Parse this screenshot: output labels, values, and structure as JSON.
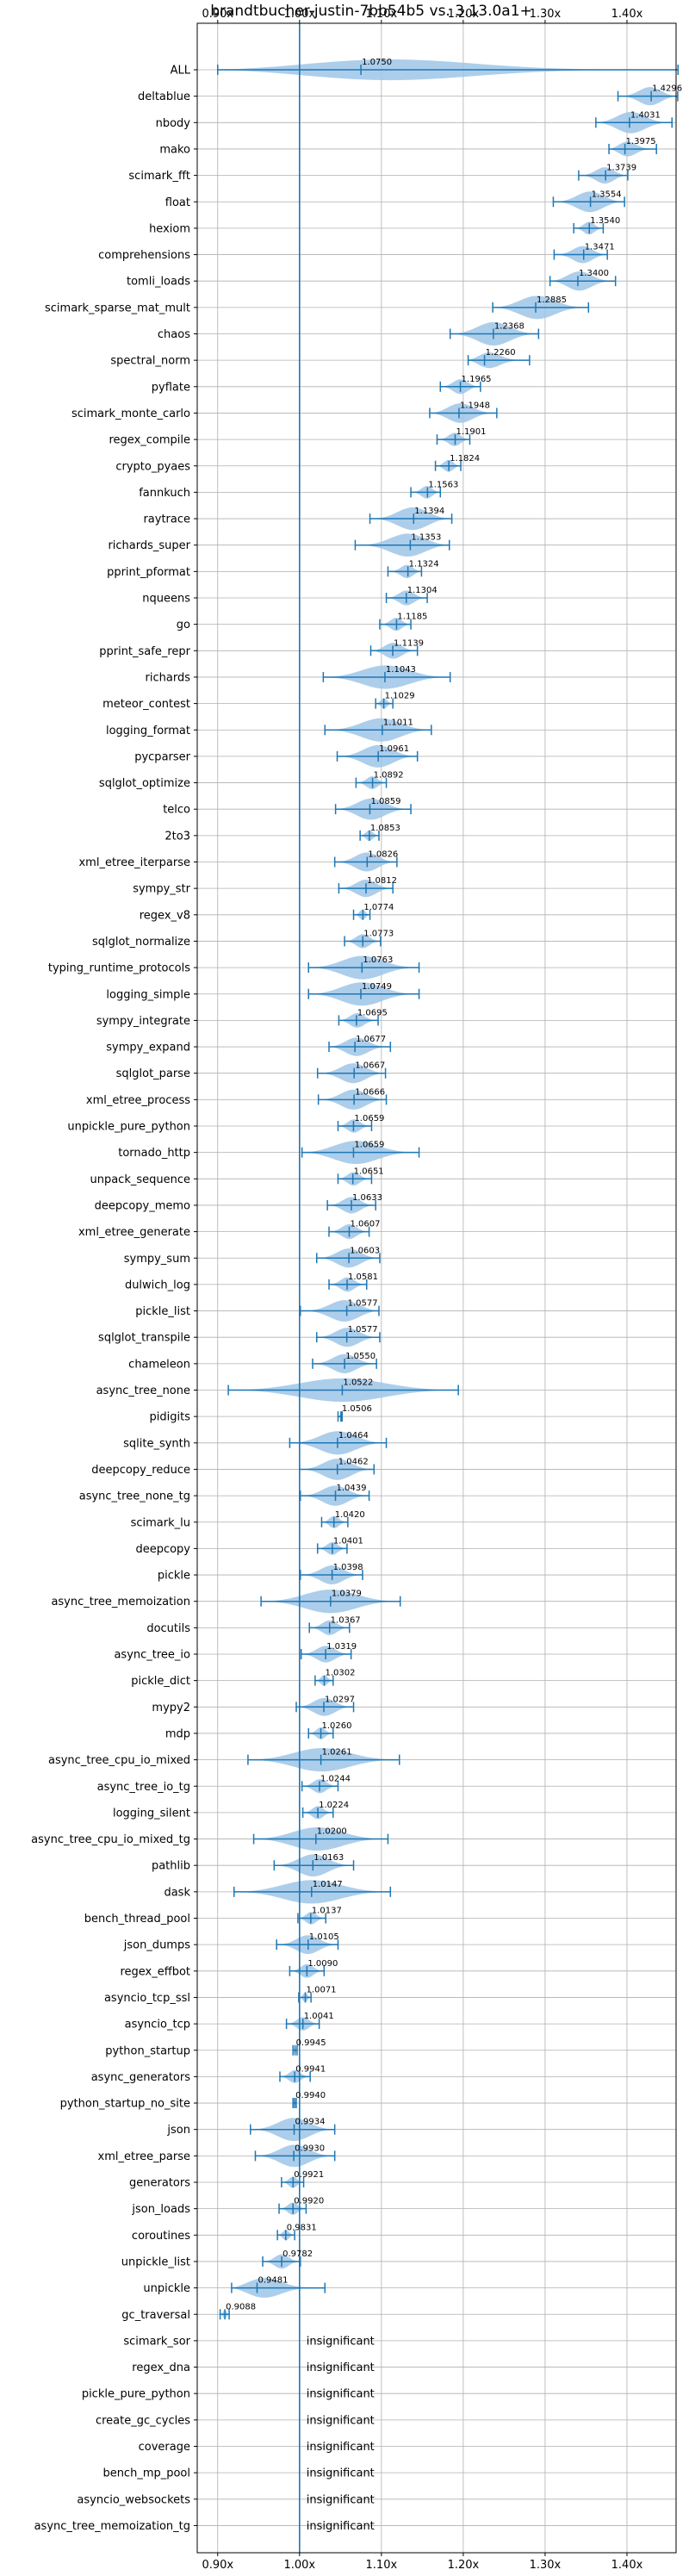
{
  "chart_data": {
    "type": "violin",
    "title": "brandtbucher-justin-7bb54b5 vs. 3.13.0a1+",
    "xlabel": "",
    "ylabel": "",
    "x_ticks": [
      "0.90x",
      "1.00x",
      "1.10x",
      "1.20x",
      "1.30x",
      "1.40x"
    ],
    "x_tick_values": [
      0.9,
      1.0,
      1.1,
      1.2,
      1.3,
      1.4
    ],
    "xlim": [
      0.875,
      1.46
    ],
    "reference_line": 1.0,
    "grid": true,
    "colors": {
      "violin": "#9ec5e8",
      "line": "#1f77b4",
      "grid": "#b0b0b0"
    },
    "insignificant_label": "insignificant",
    "benchmarks": [
      {
        "name": "ALL",
        "value": 1.075,
        "label": "1.0750",
        "min": 0.9,
        "max": 1.4624
      },
      {
        "name": "deltablue",
        "value": 1.4296,
        "label": "1.4296",
        "min": 1.389,
        "max": 1.462
      },
      {
        "name": "nbody",
        "value": 1.4031,
        "label": "1.4031",
        "min": 1.362,
        "max": 1.455
      },
      {
        "name": "mako",
        "value": 1.3975,
        "label": "1.3975",
        "min": 1.378,
        "max": 1.436
      },
      {
        "name": "scimark_fft",
        "value": 1.3739,
        "label": "1.3739",
        "min": 1.341,
        "max": 1.401
      },
      {
        "name": "float",
        "value": 1.3554,
        "label": "1.3554",
        "min": 1.31,
        "max": 1.397
      },
      {
        "name": "hexiom",
        "value": 1.354,
        "label": "1.3540",
        "min": 1.335,
        "max": 1.371
      },
      {
        "name": "comprehensions",
        "value": 1.3471,
        "label": "1.3471",
        "min": 1.311,
        "max": 1.376
      },
      {
        "name": "tomli_loads",
        "value": 1.34,
        "label": "1.3400",
        "min": 1.306,
        "max": 1.386
      },
      {
        "name": "scimark_sparse_mat_mult",
        "value": 1.2885,
        "label": "1.2885",
        "min": 1.236,
        "max": 1.353
      },
      {
        "name": "chaos",
        "value": 1.2368,
        "label": "1.2368",
        "min": 1.184,
        "max": 1.292
      },
      {
        "name": "spectral_norm",
        "value": 1.226,
        "label": "1.2260",
        "min": 1.206,
        "max": 1.281
      },
      {
        "name": "pyflate",
        "value": 1.1965,
        "label": "1.1965",
        "min": 1.172,
        "max": 1.221
      },
      {
        "name": "scimark_monte_carlo",
        "value": 1.1948,
        "label": "1.1948",
        "min": 1.159,
        "max": 1.241
      },
      {
        "name": "regex_compile",
        "value": 1.1901,
        "label": "1.1901",
        "min": 1.168,
        "max": 1.208
      },
      {
        "name": "crypto_pyaes",
        "value": 1.1824,
        "label": "1.1824",
        "min": 1.166,
        "max": 1.197
      },
      {
        "name": "fannkuch",
        "value": 1.1563,
        "label": "1.1563",
        "min": 1.136,
        "max": 1.172
      },
      {
        "name": "raytrace",
        "value": 1.1394,
        "label": "1.1394",
        "min": 1.086,
        "max": 1.186
      },
      {
        "name": "richards_super",
        "value": 1.1353,
        "label": "1.1353",
        "min": 1.068,
        "max": 1.183
      },
      {
        "name": "pprint_pformat",
        "value": 1.1324,
        "label": "1.1324",
        "min": 1.108,
        "max": 1.149
      },
      {
        "name": "nqueens",
        "value": 1.1304,
        "label": "1.1304",
        "min": 1.106,
        "max": 1.156
      },
      {
        "name": "go",
        "value": 1.1185,
        "label": "1.1185",
        "min": 1.098,
        "max": 1.136
      },
      {
        "name": "pprint_safe_repr",
        "value": 1.1139,
        "label": "1.1139",
        "min": 1.087,
        "max": 1.144
      },
      {
        "name": "richards",
        "value": 1.1043,
        "label": "1.1043",
        "min": 1.029,
        "max": 1.184
      },
      {
        "name": "meteor_contest",
        "value": 1.1029,
        "label": "1.1029",
        "min": 1.093,
        "max": 1.114
      },
      {
        "name": "logging_format",
        "value": 1.1011,
        "label": "1.1011",
        "min": 1.031,
        "max": 1.161
      },
      {
        "name": "pycparser",
        "value": 1.0961,
        "label": "1.0961",
        "min": 1.046,
        "max": 1.144
      },
      {
        "name": "sqlglot_optimize",
        "value": 1.0892,
        "label": "1.0892",
        "min": 1.069,
        "max": 1.106
      },
      {
        "name": "telco",
        "value": 1.0859,
        "label": "1.0859",
        "min": 1.044,
        "max": 1.136
      },
      {
        "name": "2to3",
        "value": 1.0853,
        "label": "1.0853",
        "min": 1.074,
        "max": 1.097
      },
      {
        "name": "xml_etree_iterparse",
        "value": 1.0826,
        "label": "1.0826",
        "min": 1.043,
        "max": 1.119
      },
      {
        "name": "sympy_str",
        "value": 1.0812,
        "label": "1.0812",
        "min": 1.048,
        "max": 1.114
      },
      {
        "name": "regex_v8",
        "value": 1.0774,
        "label": "1.0774",
        "min": 1.066,
        "max": 1.086
      },
      {
        "name": "sqlglot_normalize",
        "value": 1.0773,
        "label": "1.0773",
        "min": 1.055,
        "max": 1.099
      },
      {
        "name": "typing_runtime_protocols",
        "value": 1.0763,
        "label": "1.0763",
        "min": 1.011,
        "max": 1.146
      },
      {
        "name": "logging_simple",
        "value": 1.0749,
        "label": "1.0749",
        "min": 1.011,
        "max": 1.146
      },
      {
        "name": "sympy_integrate",
        "value": 1.0695,
        "label": "1.0695",
        "min": 1.048,
        "max": 1.096
      },
      {
        "name": "sympy_expand",
        "value": 1.0677,
        "label": "1.0677",
        "min": 1.036,
        "max": 1.111
      },
      {
        "name": "sqlglot_parse",
        "value": 1.0667,
        "label": "1.0667",
        "min": 1.022,
        "max": 1.105
      },
      {
        "name": "xml_etree_process",
        "value": 1.0666,
        "label": "1.0666",
        "min": 1.023,
        "max": 1.106
      },
      {
        "name": "unpickle_pure_python",
        "value": 1.0659,
        "label": "1.0659",
        "min": 1.047,
        "max": 1.088
      },
      {
        "name": "tornado_http",
        "value": 1.0659,
        "label": "1.0659",
        "min": 1.003,
        "max": 1.146
      },
      {
        "name": "unpack_sequence",
        "value": 1.0651,
        "label": "1.0651",
        "min": 1.047,
        "max": 1.088
      },
      {
        "name": "deepcopy_memo",
        "value": 1.0633,
        "label": "1.0633",
        "min": 1.034,
        "max": 1.093
      },
      {
        "name": "xml_etree_generate",
        "value": 1.0607,
        "label": "1.0607",
        "min": 1.036,
        "max": 1.085
      },
      {
        "name": "sympy_sum",
        "value": 1.0603,
        "label": "1.0603",
        "min": 1.021,
        "max": 1.098
      },
      {
        "name": "dulwich_log",
        "value": 1.0581,
        "label": "1.0581",
        "min": 1.036,
        "max": 1.082
      },
      {
        "name": "pickle_list",
        "value": 1.0577,
        "label": "1.0577",
        "min": 1.001,
        "max": 1.097
      },
      {
        "name": "sqlglot_transpile",
        "value": 1.0577,
        "label": "1.0577",
        "min": 1.021,
        "max": 1.098
      },
      {
        "name": "chameleon",
        "value": 1.055,
        "label": "1.0550",
        "min": 1.016,
        "max": 1.094
      },
      {
        "name": "async_tree_none",
        "value": 1.0522,
        "label": "1.0522",
        "min": 0.913,
        "max": 1.194
      },
      {
        "name": "pidigits",
        "value": 1.0506,
        "label": "1.0506",
        "min": 1.047,
        "max": 1.052
      },
      {
        "name": "sqlite_synth",
        "value": 1.0464,
        "label": "1.0464",
        "min": 0.988,
        "max": 1.106
      },
      {
        "name": "deepcopy_reduce",
        "value": 1.0462,
        "label": "1.0462",
        "min": 1.0,
        "max": 1.091
      },
      {
        "name": "async_tree_none_tg",
        "value": 1.0439,
        "label": "1.0439",
        "min": 1.001,
        "max": 1.085
      },
      {
        "name": "scimark_lu",
        "value": 1.042,
        "label": "1.0420",
        "min": 1.027,
        "max": 1.059
      },
      {
        "name": "deepcopy",
        "value": 1.0401,
        "label": "1.0401",
        "min": 1.022,
        "max": 1.058
      },
      {
        "name": "pickle",
        "value": 1.0398,
        "label": "1.0398",
        "min": 1.001,
        "max": 1.077
      },
      {
        "name": "async_tree_memoization",
        "value": 1.0379,
        "label": "1.0379",
        "min": 0.953,
        "max": 1.123
      },
      {
        "name": "docutils",
        "value": 1.0367,
        "label": "1.0367",
        "min": 1.012,
        "max": 1.061
      },
      {
        "name": "async_tree_io",
        "value": 1.0319,
        "label": "1.0319",
        "min": 1.002,
        "max": 1.063
      },
      {
        "name": "pickle_dict",
        "value": 1.0302,
        "label": "1.0302",
        "min": 1.019,
        "max": 1.041
      },
      {
        "name": "mypy2",
        "value": 1.0297,
        "label": "1.0297",
        "min": 0.996,
        "max": 1.066
      },
      {
        "name": "mdp",
        "value": 1.026,
        "label": "1.0260",
        "min": 1.011,
        "max": 1.041
      },
      {
        "name": "async_tree_cpu_io_mixed",
        "value": 1.0261,
        "label": "1.0261",
        "min": 0.937,
        "max": 1.122
      },
      {
        "name": "async_tree_io_tg",
        "value": 1.0244,
        "label": "1.0244",
        "min": 1.003,
        "max": 1.047
      },
      {
        "name": "logging_silent",
        "value": 1.0224,
        "label": "1.0224",
        "min": 1.004,
        "max": 1.041
      },
      {
        "name": "async_tree_cpu_io_mixed_tg",
        "value": 1.02,
        "label": "1.0200",
        "min": 0.944,
        "max": 1.108
      },
      {
        "name": "pathlib",
        "value": 1.0163,
        "label": "1.0163",
        "min": 0.969,
        "max": 1.066
      },
      {
        "name": "dask",
        "value": 1.0147,
        "label": "1.0147",
        "min": 0.92,
        "max": 1.111
      },
      {
        "name": "bench_thread_pool",
        "value": 1.0137,
        "label": "1.0137",
        "min": 0.998,
        "max": 1.032
      },
      {
        "name": "json_dumps",
        "value": 1.0105,
        "label": "1.0105",
        "min": 0.972,
        "max": 1.047
      },
      {
        "name": "regex_effbot",
        "value": 1.009,
        "label": "1.0090",
        "min": 0.988,
        "max": 1.03
      },
      {
        "name": "asyncio_tcp_ssl",
        "value": 1.0071,
        "label": "1.0071",
        "min": 0.999,
        "max": 1.014
      },
      {
        "name": "asyncio_tcp",
        "value": 1.0041,
        "label": "1.0041",
        "min": 0.984,
        "max": 1.024
      },
      {
        "name": "python_startup",
        "value": 0.9945,
        "label": "0.9945",
        "min": 0.992,
        "max": 0.997
      },
      {
        "name": "async_generators",
        "value": 0.9941,
        "label": "0.9941",
        "min": 0.976,
        "max": 1.013
      },
      {
        "name": "python_startup_no_site",
        "value": 0.994,
        "label": "0.9940",
        "min": 0.992,
        "max": 0.996
      },
      {
        "name": "json",
        "value": 0.9934,
        "label": "0.9934",
        "min": 0.94,
        "max": 1.043
      },
      {
        "name": "xml_etree_parse",
        "value": 0.993,
        "label": "0.9930",
        "min": 0.946,
        "max": 1.043
      },
      {
        "name": "generators",
        "value": 0.9921,
        "label": "0.9921",
        "min": 0.978,
        "max": 1.005
      },
      {
        "name": "json_loads",
        "value": 0.992,
        "label": "0.9920",
        "min": 0.975,
        "max": 1.008
      },
      {
        "name": "coroutines",
        "value": 0.9831,
        "label": "0.9831",
        "min": 0.973,
        "max": 0.994
      },
      {
        "name": "unpickle_list",
        "value": 0.9782,
        "label": "0.9782",
        "min": 0.955,
        "max": 1.001
      },
      {
        "name": "unpickle",
        "value": 0.9481,
        "label": "0.9481",
        "min": 0.917,
        "max": 1.031
      },
      {
        "name": "gc_traversal",
        "value": 0.9088,
        "label": "0.9088",
        "min": 0.903,
        "max": 0.914
      },
      {
        "name": "scimark_sor",
        "value": null,
        "label": "insignificant"
      },
      {
        "name": "regex_dna",
        "value": null,
        "label": "insignificant"
      },
      {
        "name": "pickle_pure_python",
        "value": null,
        "label": "insignificant"
      },
      {
        "name": "create_gc_cycles",
        "value": null,
        "label": "insignificant"
      },
      {
        "name": "coverage",
        "value": null,
        "label": "insignificant"
      },
      {
        "name": "bench_mp_pool",
        "value": null,
        "label": "insignificant"
      },
      {
        "name": "asyncio_websockets",
        "value": null,
        "label": "insignificant"
      },
      {
        "name": "async_tree_memoization_tg",
        "value": null,
        "label": "insignificant"
      }
    ]
  }
}
